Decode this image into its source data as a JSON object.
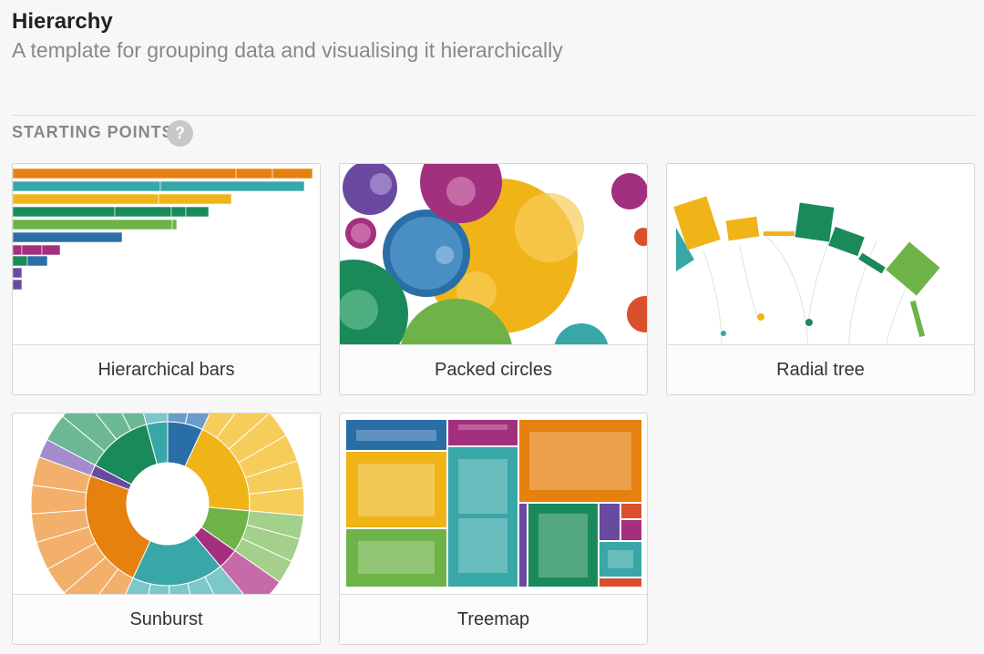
{
  "header": {
    "title": "Hierarchy",
    "subtitle": "A template for grouping data and visualising it hierarchically"
  },
  "section": {
    "label": "STARTING POINTS",
    "help": "?"
  },
  "cards": [
    {
      "label": "Hierarchical bars"
    },
    {
      "label": "Packed circles"
    },
    {
      "label": "Radial tree"
    },
    {
      "label": "Sunburst"
    },
    {
      "label": "Treemap"
    }
  ]
}
